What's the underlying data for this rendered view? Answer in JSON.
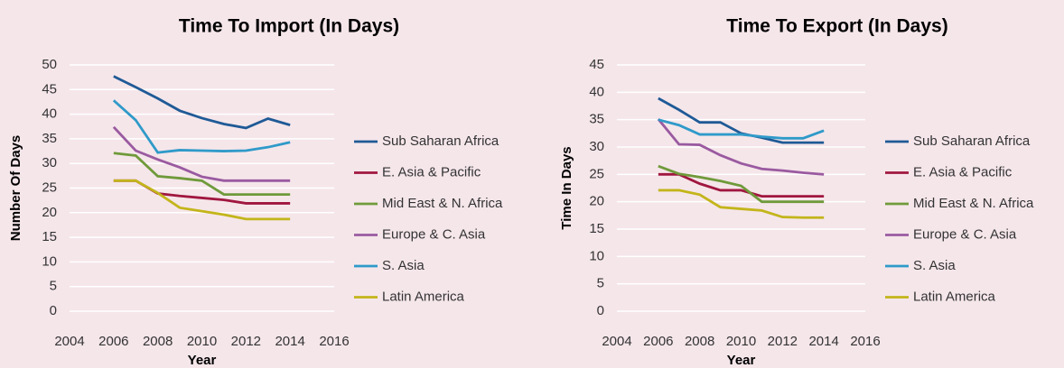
{
  "chart_data": [
    {
      "type": "line",
      "title": "Time To Import (In Days)",
      "xlabel": "Year",
      "ylabel": "Number Of Days",
      "x": [
        2006,
        2007,
        2008,
        2009,
        2010,
        2011,
        2012,
        2013,
        2014
      ],
      "xlim": [
        2004,
        2016
      ],
      "xticks": [
        2004,
        2006,
        2008,
        2010,
        2012,
        2014,
        2016
      ],
      "ylim": [
        0,
        50
      ],
      "yticks": [
        0,
        5,
        10,
        15,
        20,
        25,
        30,
        35,
        40,
        45,
        50
      ],
      "grid": true,
      "legend": "right",
      "series": [
        {
          "name": "Sub Saharan Africa",
          "color": "#1f5a96",
          "values": [
            47.7,
            45.5,
            43.2,
            40.7,
            39.2,
            38.0,
            37.2,
            39.1,
            37.8
          ]
        },
        {
          "name": "E. Asia & Pacific",
          "color": "#a0173f",
          "values": [
            26.5,
            26.5,
            23.9,
            23.4,
            23.0,
            22.6,
            21.9,
            21.9,
            21.9
          ]
        },
        {
          "name": "Mid East & N. Africa",
          "color": "#6f9a3a",
          "values": [
            32.1,
            31.6,
            27.4,
            27.0,
            26.5,
            23.7,
            23.7,
            23.7,
            23.7
          ]
        },
        {
          "name": "Europe & C. Asia",
          "color": "#9a5aa0",
          "values": [
            37.4,
            32.6,
            30.8,
            29.2,
            27.3,
            26.5,
            26.5,
            26.5,
            26.5
          ]
        },
        {
          "name": "S. Asia",
          "color": "#2f9ac9",
          "values": [
            42.8,
            38.8,
            32.2,
            32.7,
            32.6,
            32.5,
            32.6,
            33.3,
            34.3
          ]
        },
        {
          "name": "Latin America",
          "color": "#c3b51a",
          "values": [
            26.5,
            26.5,
            24.0,
            21.0,
            20.3,
            19.6,
            18.7,
            18.7,
            18.7
          ]
        }
      ]
    },
    {
      "type": "line",
      "title": "Time To Export (In Days)",
      "xlabel": "Year",
      "ylabel": "Time In Days",
      "x": [
        2006,
        2007,
        2008,
        2009,
        2010,
        2011,
        2012,
        2013,
        2014
      ],
      "xlim": [
        2004,
        2016
      ],
      "xticks": [
        2004,
        2006,
        2008,
        2010,
        2012,
        2014,
        2016
      ],
      "ylim": [
        0,
        45
      ],
      "yticks": [
        0,
        5,
        10,
        15,
        20,
        25,
        30,
        35,
        40,
        45
      ],
      "grid": true,
      "legend": "right",
      "series": [
        {
          "name": "Sub Saharan Africa",
          "color": "#1f5a96",
          "values": [
            38.9,
            36.8,
            34.5,
            34.5,
            32.5,
            31.7,
            30.8,
            30.8,
            30.8
          ]
        },
        {
          "name": "E. Asia & Pacific",
          "color": "#a0173f",
          "values": [
            25.0,
            25.0,
            23.3,
            22.1,
            22.1,
            21.0,
            21.0,
            21.0,
            21.0
          ]
        },
        {
          "name": "Mid East & N. Africa",
          "color": "#6f9a3a",
          "values": [
            26.5,
            25.1,
            24.5,
            23.8,
            22.9,
            20.0,
            20.0,
            20.0,
            20.0
          ]
        },
        {
          "name": "Europe & C. Asia",
          "color": "#9a5aa0",
          "values": [
            35.1,
            30.5,
            30.4,
            28.5,
            27.0,
            26.0,
            25.7,
            25.3,
            25.0
          ]
        },
        {
          "name": "S. Asia",
          "color": "#2f9ac9",
          "values": [
            35.0,
            34.0,
            32.3,
            32.3,
            32.3,
            31.9,
            31.6,
            31.6,
            33.0
          ]
        },
        {
          "name": "Latin America",
          "color": "#c3b51a",
          "values": [
            22.1,
            22.1,
            21.3,
            19.0,
            18.7,
            18.4,
            17.2,
            17.1,
            17.1
          ]
        }
      ]
    }
  ]
}
